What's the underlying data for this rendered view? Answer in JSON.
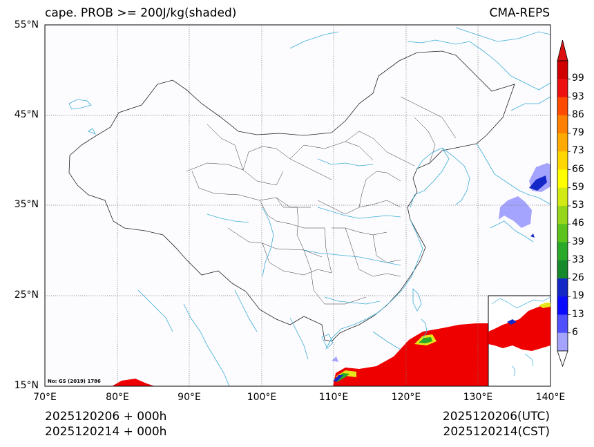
{
  "title": {
    "left": "cape. PROB >= 200J/kg(shaded)",
    "right": "CMA-REPS"
  },
  "axes": {
    "y_ticks": [
      "55°N",
      "45°N",
      "35°N",
      "25°N",
      "15°N"
    ],
    "x_ticks": [
      "70°E",
      "80°E",
      "90°E",
      "100°E",
      "110°E",
      "120°E",
      "130°E",
      "140°E"
    ],
    "lat_range": [
      15,
      55
    ],
    "lon_range": [
      70,
      140
    ]
  },
  "colorbar": {
    "levels": [
      "6",
      "13",
      "19",
      "26",
      "33",
      "39",
      "46",
      "53",
      "59",
      "66",
      "73",
      "79",
      "86",
      "93",
      "99"
    ],
    "colors": [
      "#a4a4ff",
      "#5050ff",
      "#0a0aff",
      "#1428c8",
      "#168a2a",
      "#2aa82a",
      "#5cc21c",
      "#96d61a",
      "#d2ea14",
      "#ffff00",
      "#ffd700",
      "#ffaa00",
      "#ff8000",
      "#ff4a00",
      "#ee1010",
      "#d00000"
    ],
    "top_color": "#dd1111",
    "shading_red": "#ee0000"
  },
  "footer": {
    "init_utc": "2025120206  +  000h",
    "init_cst": "2025120214  +  000h",
    "valid_utc": "2025120206(UTC)",
    "valid_cst": "2025120214(CST)"
  },
  "approval_number": "No: GS (2019) 1786",
  "colors": {
    "coast": "#3aaed8",
    "border": "#222222",
    "grid": "#777777"
  }
}
